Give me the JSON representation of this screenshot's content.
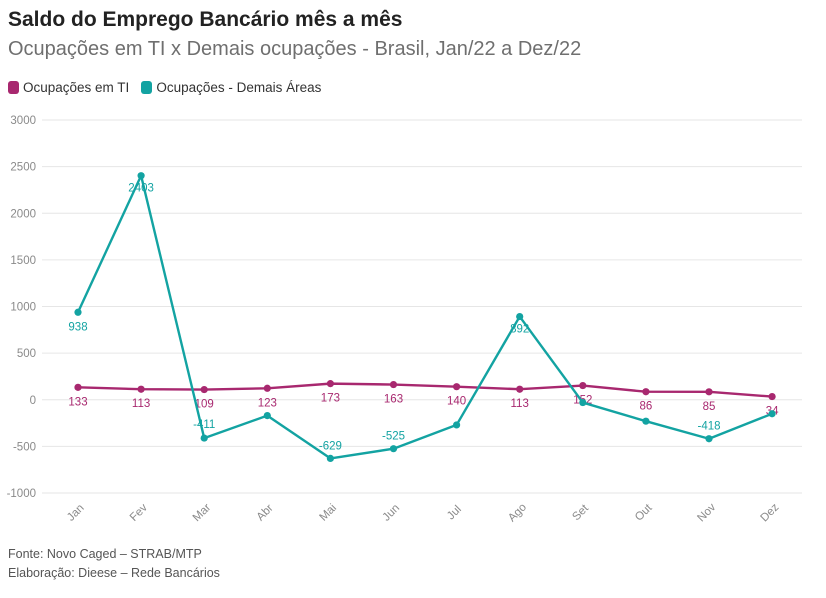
{
  "title": "Saldo do Emprego Bancário mês a mês",
  "subtitle": "Ocupações em TI x Demais ocupações - Brasil, Jan/22 a Dez/22",
  "footer": {
    "source": "Fonte: Novo Caged – STRAB/MTP",
    "credit": "Elaboração: Dieese – Rede Bancários"
  },
  "colors": {
    "ti": "#a8286f",
    "demais": "#13a3a2",
    "grid": "#e6e6e6",
    "axis_text": "#8a8a8a"
  },
  "chart_data": {
    "type": "line",
    "title": "Saldo do Emprego Bancário mês a mês",
    "subtitle": "Ocupações em TI x Demais ocupações - Brasil, Jan/22 a Dez/22",
    "categories": [
      "Jan",
      "Fev",
      "Mar",
      "Abr",
      "Mai",
      "Jun",
      "Jul",
      "Ago",
      "Set",
      "Out",
      "Nov",
      "Dez"
    ],
    "ylim": [
      -1000,
      3000
    ],
    "yticks": [
      -1000,
      -500,
      0,
      500,
      1000,
      1500,
      2000,
      2500,
      3000
    ],
    "grid": true,
    "legend_position": "top-left",
    "series": [
      {
        "name": "Ocupações em TI",
        "color": "#a8286f",
        "values": [
          133,
          113,
          109,
          123,
          173,
          163,
          140,
          113,
          152,
          86,
          85,
          34
        ],
        "labels": [
          "133",
          "113",
          "109",
          "123",
          "173",
          "163",
          "140",
          "113",
          "152",
          "86",
          "85",
          "34"
        ]
      },
      {
        "name": "Ocupações - Demais Áreas",
        "color": "#13a3a2",
        "values": [
          938,
          2403,
          -411,
          -170,
          -629,
          -525,
          -270,
          892,
          -30,
          -230,
          -418,
          -150
        ],
        "labels": [
          "938",
          "2403",
          "-411",
          "",
          "-629",
          "-525",
          "",
          "892",
          "",
          "",
          "-418",
          ""
        ]
      }
    ]
  }
}
